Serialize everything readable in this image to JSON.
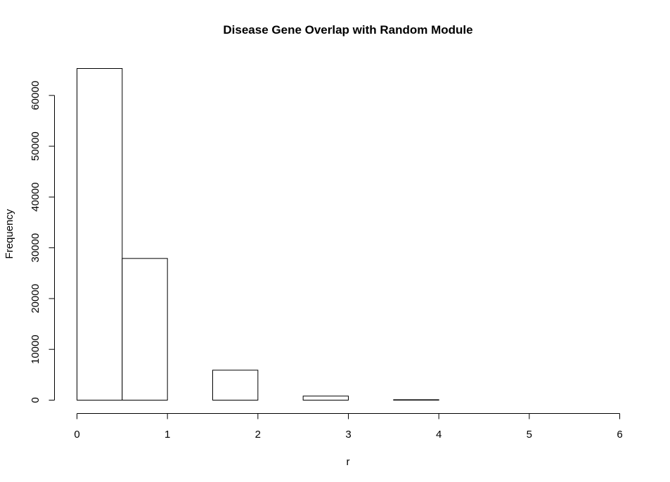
{
  "chart_data": {
    "type": "bar",
    "title": "Disease Gene Overlap with Random Module",
    "xlabel": "r",
    "ylabel": "Frequency",
    "xlim": [
      0,
      6
    ],
    "ylim": [
      0,
      65300
    ],
    "bin_width": 0.5,
    "bins": [
      {
        "x0": 0.0,
        "x1": 0.5,
        "count": 65300
      },
      {
        "x0": 0.5,
        "x1": 1.0,
        "count": 27900
      },
      {
        "x0": 1.0,
        "x1": 1.5,
        "count": 0
      },
      {
        "x0": 1.5,
        "x1": 2.0,
        "count": 5900
      },
      {
        "x0": 2.0,
        "x1": 2.5,
        "count": 0
      },
      {
        "x0": 2.5,
        "x1": 3.0,
        "count": 800
      },
      {
        "x0": 3.0,
        "x1": 3.5,
        "count": 0
      },
      {
        "x0": 3.5,
        "x1": 4.0,
        "count": 80
      },
      {
        "x0": 4.0,
        "x1": 4.5,
        "count": 0
      },
      {
        "x0": 4.5,
        "x1": 5.0,
        "count": 0
      },
      {
        "x0": 5.0,
        "x1": 5.5,
        "count": 0
      },
      {
        "x0": 5.5,
        "x1": 6.0,
        "count": 0
      }
    ],
    "x_ticks": [
      0,
      1,
      2,
      3,
      4,
      5,
      6
    ],
    "x_tick_labels": [
      "0",
      "1",
      "2",
      "3",
      "4",
      "5",
      "6"
    ],
    "y_ticks": [
      0,
      10000,
      20000,
      30000,
      40000,
      50000,
      60000
    ],
    "y_tick_labels": [
      "0",
      "10000",
      "20000",
      "30000",
      "40000",
      "50000",
      "60000"
    ],
    "grid": false,
    "legend": "none"
  }
}
